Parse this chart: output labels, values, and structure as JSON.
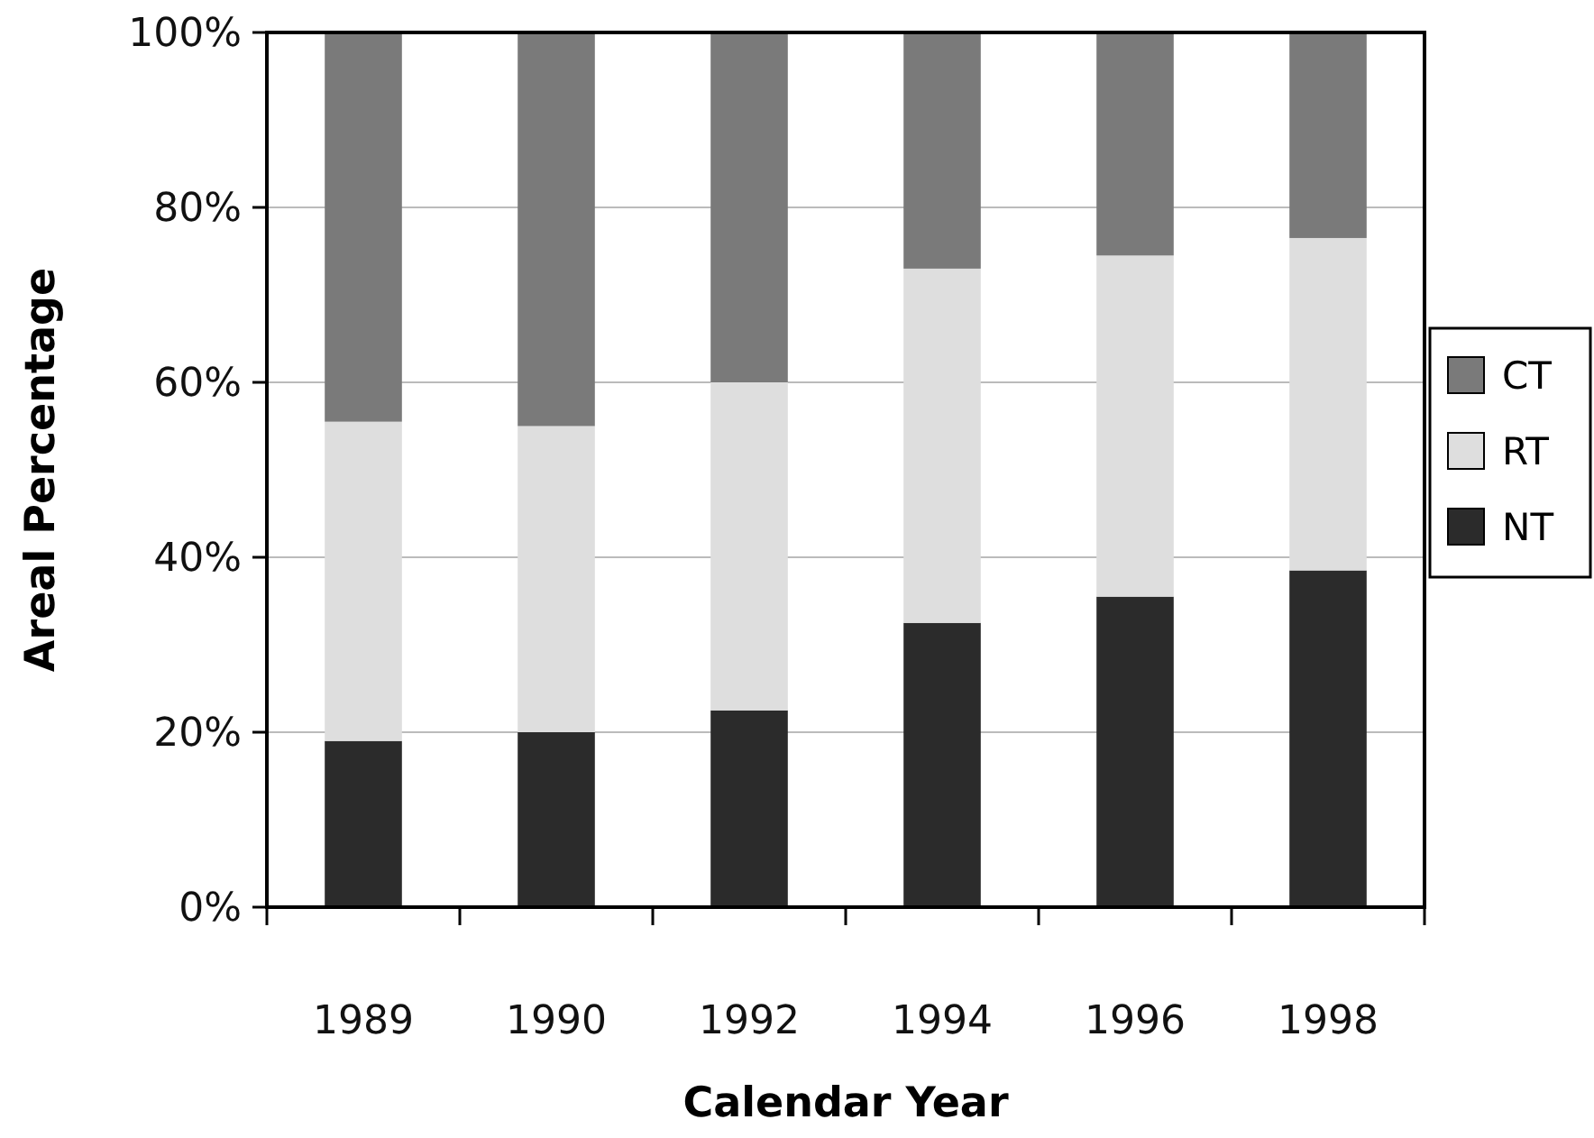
{
  "chart_data": {
    "type": "bar",
    "stacked": true,
    "xlabel": "Calendar Year",
    "ylabel": "Areal Percentage",
    "categories": [
      "1989",
      "1990",
      "1992",
      "1994",
      "1996",
      "1998"
    ],
    "series": [
      {
        "name": "NT",
        "color": "#2b2b2b",
        "values": [
          19,
          20,
          22.5,
          32.5,
          35.5,
          38.5
        ]
      },
      {
        "name": "RT",
        "color": "#dedede",
        "values": [
          36.5,
          35,
          37.5,
          40.5,
          39,
          38
        ]
      },
      {
        "name": "CT",
        "color": "#7a7a7a",
        "values": [
          44.5,
          45,
          40,
          27,
          25.5,
          23.5
        ]
      }
    ],
    "ylim": [
      0,
      100
    ],
    "yticks": [
      {
        "value": 0,
        "label": "0%"
      },
      {
        "value": 20,
        "label": "20%"
      },
      {
        "value": 40,
        "label": "40%"
      },
      {
        "value": 60,
        "label": "60%"
      },
      {
        "value": 80,
        "label": "80%"
      },
      {
        "value": 100,
        "label": "100%"
      }
    ],
    "grid": "y",
    "legend": "right"
  }
}
